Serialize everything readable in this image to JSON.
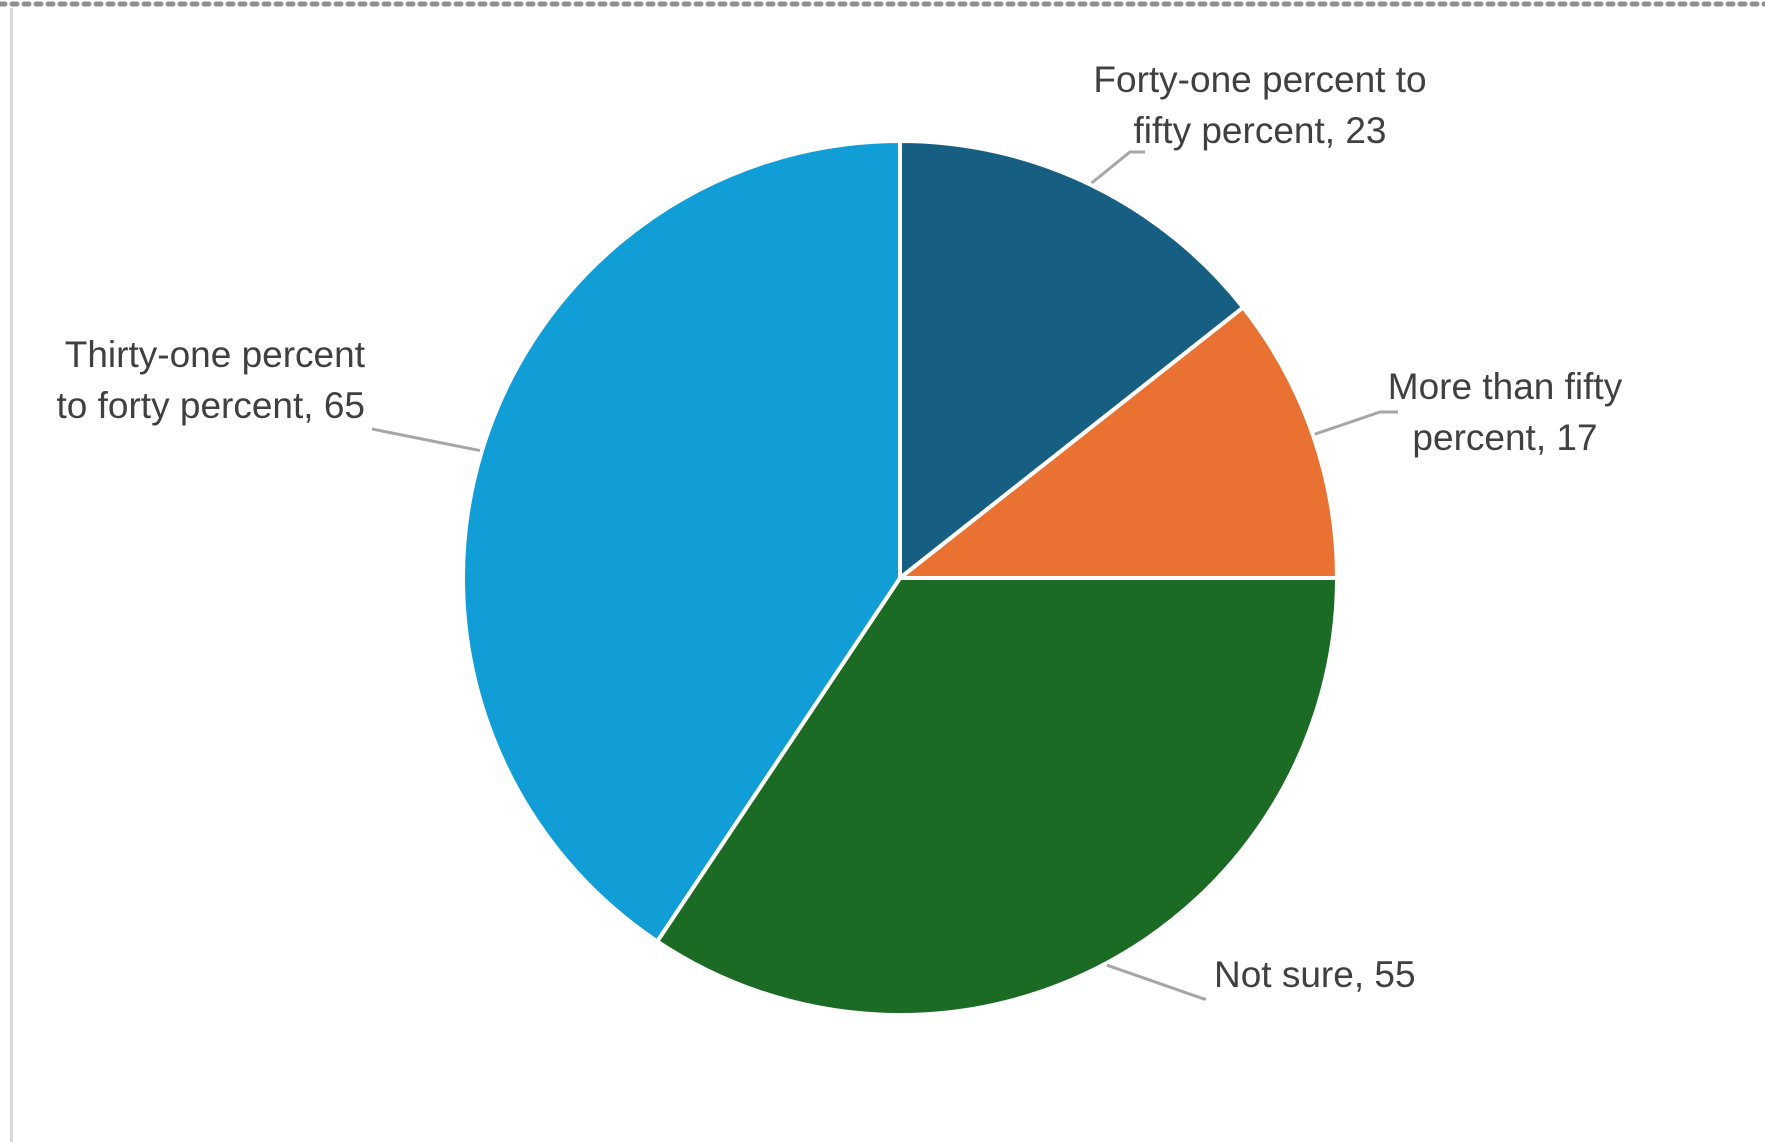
{
  "chart_data": {
    "type": "pie",
    "slices": [
      {
        "label_lines": [
          "Forty-one percent to",
          "fifty percent, 23"
        ],
        "name": "Forty-one percent to fifty percent",
        "value": 23,
        "color": "#175F82"
      },
      {
        "label_lines": [
          "More than fifty",
          "percent, 17"
        ],
        "name": "More than fifty percent",
        "value": 17,
        "color": "#E97132"
      },
      {
        "label_lines": [
          "Not sure, 55"
        ],
        "name": "Not sure",
        "value": 55,
        "color": "#1B6B24"
      },
      {
        "label_lines": [
          "Thirty-one percent",
          "to forty percent, 65"
        ],
        "name": "Thirty-one percent to forty percent",
        "value": 65,
        "color": "#119DD6"
      }
    ],
    "start": "12 o'clock",
    "direction": "clockwise",
    "legend": "none",
    "data_labels": "outside with leader lines"
  },
  "colors": {
    "label_text": "#404040",
    "leader_line": "#a6a6a6",
    "slice_border": "#ffffff",
    "frame_rule": "#d9d9d9"
  }
}
